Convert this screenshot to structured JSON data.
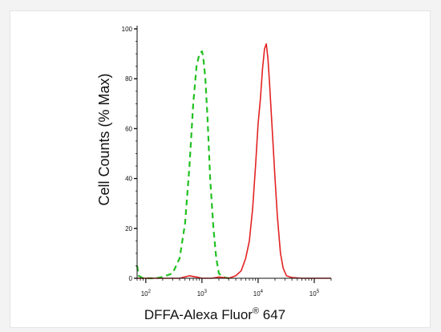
{
  "chart_data": {
    "type": "line",
    "title": "",
    "xlabel": "DFFA-Alexa Fluor",
    "xlabel_superscript": "®",
    "xlabel_suffix": " 647",
    "ylabel": "Cell Counts (% Max)",
    "x_scale": "log",
    "xlim": [
      70,
      200000
    ],
    "ylim": [
      0,
      100
    ],
    "x_ticks": [
      {
        "value": 100,
        "base": "10",
        "exp": "2"
      },
      {
        "value": 1000,
        "base": "10",
        "exp": "3"
      },
      {
        "value": 10000,
        "base": "10",
        "exp": "4"
      },
      {
        "value": 100000,
        "base": "10",
        "exp": "5"
      }
    ],
    "y_ticks": [
      "0",
      "20",
      "40",
      "60",
      "80",
      "100"
    ],
    "y_tick_values": [
      0,
      20,
      40,
      60,
      80,
      100
    ],
    "grid": false,
    "legend": "none",
    "series": [
      {
        "color": "#21c021",
        "style": "dashed",
        "points": [
          [
            70,
            5
          ],
          [
            75,
            1
          ],
          [
            90,
            0
          ],
          [
            150,
            0
          ],
          [
            200,
            0.5
          ],
          [
            300,
            2
          ],
          [
            400,
            8
          ],
          [
            500,
            22
          ],
          [
            600,
            45
          ],
          [
            700,
            70
          ],
          [
            800,
            85
          ],
          [
            900,
            90
          ],
          [
            1000,
            91
          ],
          [
            1050,
            89
          ],
          [
            1150,
            80
          ],
          [
            1250,
            65
          ],
          [
            1400,
            40
          ],
          [
            1600,
            20
          ],
          [
            1800,
            8
          ],
          [
            2000,
            2
          ],
          [
            2300,
            0.5
          ],
          [
            3000,
            0
          ]
        ]
      },
      {
        "color": "#e32222",
        "style": "solid",
        "points": [
          [
            70,
            0
          ],
          [
            400,
            0
          ],
          [
            600,
            1
          ],
          [
            800,
            0.5
          ],
          [
            1000,
            0
          ],
          [
            1500,
            0
          ],
          [
            2000,
            0.5
          ],
          [
            3000,
            0
          ],
          [
            4000,
            1
          ],
          [
            5000,
            3
          ],
          [
            6000,
            8
          ],
          [
            7000,
            15
          ],
          [
            8000,
            28
          ],
          [
            9000,
            45
          ],
          [
            10000,
            62
          ],
          [
            11000,
            72
          ],
          [
            12000,
            84
          ],
          [
            13000,
            92
          ],
          [
            14000,
            94
          ],
          [
            15000,
            88
          ],
          [
            16000,
            78
          ],
          [
            18000,
            58
          ],
          [
            20000,
            40
          ],
          [
            22000,
            25
          ],
          [
            25000,
            10
          ],
          [
            28000,
            4
          ],
          [
            32000,
            1
          ],
          [
            40000,
            0.3
          ],
          [
            60000,
            0
          ],
          [
            100000,
            0
          ],
          [
            200000,
            0
          ]
        ]
      }
    ]
  }
}
